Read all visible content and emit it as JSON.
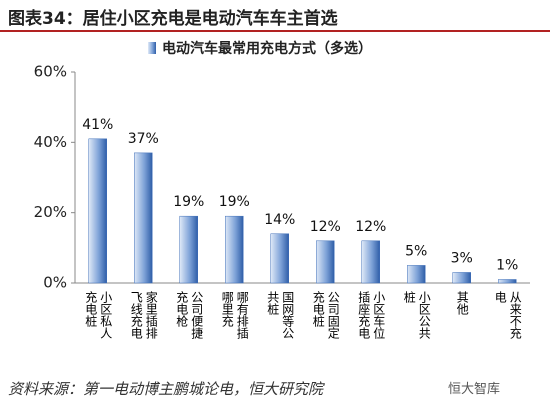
{
  "title": "图表34：居住小区充电是电动汽车车主首选",
  "chart_data": {
    "type": "bar",
    "legend": "电动汽车最常用充电方式（多选）",
    "categories": [
      "小区私人充电桩",
      "家里插排飞线充电",
      "公司便捷充电枪",
      "哪有排插哪里充",
      "国网等公共桩",
      "公司固定充电桩",
      "小区车位插座充电",
      "小区公共桩",
      "其他",
      "从来不充电"
    ],
    "values": [
      41,
      37,
      19,
      19,
      14,
      12,
      12,
      5,
      3,
      1
    ],
    "value_labels": [
      "41%",
      "37%",
      "19%",
      "19%",
      "14%",
      "12%",
      "12%",
      "5%",
      "3%",
      "1%"
    ],
    "color": "#3f6fb8",
    "ylim": [
      0,
      60
    ],
    "yticks": [
      {
        "value": 0,
        "label": "0%"
      },
      {
        "value": 20,
        "label": "20%"
      },
      {
        "value": 40,
        "label": "40%"
      },
      {
        "value": 60,
        "label": "60%"
      }
    ],
    "grid": false
  },
  "source": "资料来源：第一电动博主鹏城论电，恒大研究院",
  "watermark": "恒大智库"
}
